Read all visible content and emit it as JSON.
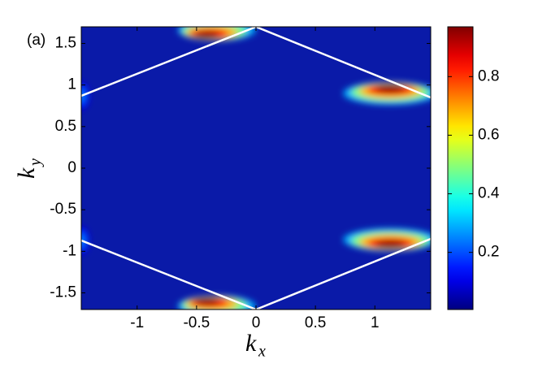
{
  "chart_data": {
    "type": "heatmap",
    "panel_label": "(a)",
    "xlabel": "k",
    "xlabel_sub": "x",
    "ylabel": "k",
    "ylabel_sub": "y",
    "xlim": [
      -1.47,
      1.47
    ],
    "ylim": [
      -1.7,
      1.7
    ],
    "xticks": [
      -1,
      -0.5,
      0,
      0.5,
      1
    ],
    "yticks": [
      -1.5,
      -1,
      -0.5,
      0,
      0.5,
      1,
      1.5
    ],
    "clim": [
      0.005,
      0.97
    ],
    "cticks": [
      0.2,
      0.4,
      0.6,
      0.8
    ],
    "colormap": "jet",
    "lines": [
      {
        "color": "#ffffff",
        "x": [
          -1.47,
          0,
          1.47
        ],
        "y": [
          0.87,
          1.7,
          0.85
        ]
      },
      {
        "color": "#ffffff",
        "x": [
          -1.47,
          0,
          1.47
        ],
        "y": [
          -0.87,
          -1.7,
          -0.85
        ]
      }
    ],
    "peaks": [
      {
        "x": -0.33,
        "y": 1.66,
        "value": 0.97
      },
      {
        "x": 1.13,
        "y": 0.9,
        "value": 0.97
      },
      {
        "x": 1.13,
        "y": -0.86,
        "value": 0.97
      },
      {
        "x": -0.33,
        "y": -1.66,
        "value": 0.97
      },
      {
        "x": -1.47,
        "y": 0.87,
        "value": 0.25
      },
      {
        "x": -1.47,
        "y": -0.87,
        "value": 0.25
      }
    ]
  }
}
